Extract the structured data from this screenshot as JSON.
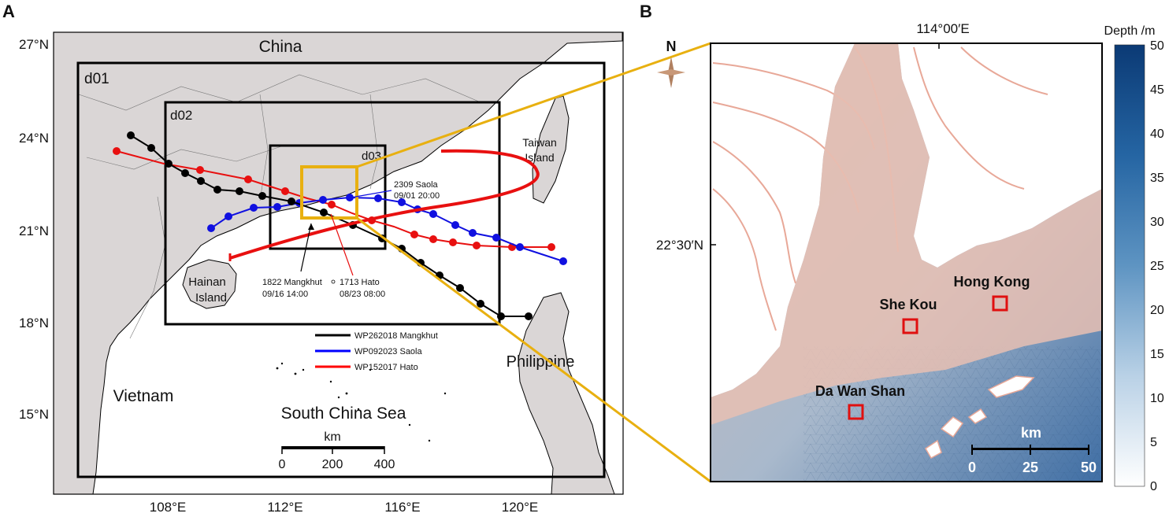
{
  "panel_a": {
    "panel_label": "A",
    "lat_labels": [
      "27°N",
      "24°N",
      "21°N",
      "18°N",
      "15°N"
    ],
    "lon_labels": [
      "108°E",
      "112°E",
      "116°E",
      "120°E"
    ],
    "domains": {
      "d01": "d01",
      "d02": "d02",
      "d03": "d03"
    },
    "places": {
      "china": "China",
      "vietnam": "Vietnam",
      "philippine": "Philippine",
      "scs": "South China Sea",
      "taiwan_1": "Taiwan",
      "taiwan_2": "Island",
      "hainan_1": "Hainan",
      "hainan_2": "Island"
    },
    "annotations": {
      "saola_1": "2309 Saola",
      "saola_2": "09/01 20:00",
      "mangkhut_1": "1822 Mangkhut",
      "mangkhut_2": "09/16 14:00",
      "hato_1": "1713 Hato",
      "hato_2": "08/23 08:00"
    },
    "legend": [
      {
        "label": "WP262018  Mangkhut",
        "color": "#000000"
      },
      {
        "label": "WP092023  Saola",
        "color": "#0000ff"
      },
      {
        "label": "WP152017  Hato",
        "color": "#ff0000"
      }
    ],
    "scale_bar": {
      "unit": "km",
      "ticks": [
        "0",
        "200",
        "400"
      ]
    },
    "colors": {
      "land": "#dad6d6",
      "sea": "#ffffff",
      "zoom_box": "#e8b010"
    }
  },
  "panel_b": {
    "panel_label": "B",
    "north_label": "N",
    "lon_label": "114°00′E",
    "lat_label": "22°30′N",
    "stations": [
      {
        "name": "Hong Kong"
      },
      {
        "name": "She Kou"
      },
      {
        "name": "Da Wan Shan"
      }
    ],
    "scale_bar": {
      "unit": "km",
      "ticks": [
        "0",
        "25",
        "50"
      ]
    },
    "colorbar": {
      "title": "Depth /m",
      "ticks": [
        "50",
        "45",
        "40",
        "35",
        "30",
        "25",
        "20",
        "15",
        "10",
        "5",
        "0"
      ],
      "min_color": "#ffffff",
      "max_color": "#0b3a75"
    },
    "colors": {
      "land": "#f0c8b8",
      "station_box": "#e01010"
    }
  }
}
